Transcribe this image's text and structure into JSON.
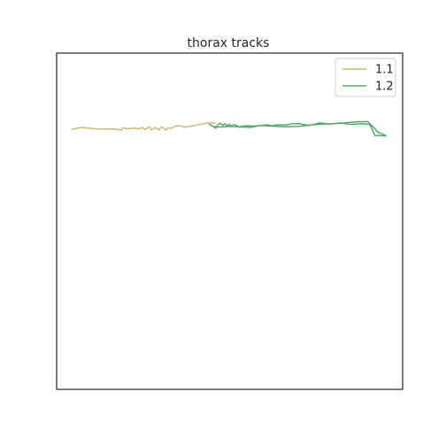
{
  "chart_data": {
    "type": "line",
    "title": "thorax tracks",
    "xlabel": "",
    "ylabel": "",
    "xlim": [
      0,
      1000
    ],
    "ylim": [
      0,
      1000
    ],
    "grid": false,
    "legend": "upper-right",
    "series": [
      {
        "name": "1.1",
        "color": "#ccb974",
        "points": [
          [
            43,
            773
          ],
          [
            72,
            779
          ],
          [
            110,
            775
          ],
          [
            143,
            774
          ],
          [
            160,
            775
          ],
          [
            188,
            771
          ],
          [
            192,
            778
          ],
          [
            206,
            775
          ],
          [
            220,
            777
          ],
          [
            240,
            775
          ],
          [
            248,
            779
          ],
          [
            256,
            773
          ],
          [
            262,
            777
          ],
          [
            268,
            781
          ],
          [
            274,
            771
          ],
          [
            280,
            776
          ],
          [
            286,
            779
          ],
          [
            290,
            774
          ],
          [
            296,
            772
          ],
          [
            300,
            778
          ],
          [
            305,
            780
          ],
          [
            310,
            776
          ],
          [
            316,
            771
          ],
          [
            322,
            778
          ],
          [
            330,
            776
          ],
          [
            340,
            781
          ],
          [
            350,
            784
          ],
          [
            360,
            783
          ],
          [
            370,
            780
          ],
          [
            385,
            782
          ],
          [
            400,
            785
          ],
          [
            420,
            789
          ],
          [
            440,
            793
          ],
          [
            460,
            791
          ]
        ]
      },
      {
        "name": "1.2",
        "color": "#55a868",
        "points": [
          [
            440,
            789
          ],
          [
            450,
            783
          ],
          [
            460,
            777
          ],
          [
            466,
            787
          ],
          [
            472,
            792
          ],
          [
            480,
            785
          ],
          [
            486,
            790
          ],
          [
            492,
            784
          ],
          [
            500,
            788
          ],
          [
            506,
            782
          ],
          [
            512,
            787
          ],
          [
            520,
            785
          ],
          [
            528,
            779
          ],
          [
            536,
            783
          ],
          [
            550,
            784
          ],
          [
            570,
            783
          ],
          [
            590,
            785
          ],
          [
            610,
            787
          ],
          [
            620,
            784
          ],
          [
            640,
            787
          ],
          [
            660,
            786
          ],
          [
            680,
            790
          ],
          [
            700,
            790
          ],
          [
            730,
            785
          ],
          [
            760,
            792
          ],
          [
            790,
            789
          ],
          [
            820,
            792
          ],
          [
            850,
            788
          ],
          [
            880,
            790
          ],
          [
            905,
            788
          ],
          [
            920,
            755
          ],
          [
            952,
            754
          ],
          [
            929,
            765
          ],
          [
            900,
            796
          ],
          [
            868,
            796
          ],
          [
            830,
            792
          ],
          [
            800,
            790
          ],
          [
            770,
            789
          ],
          [
            740,
            787
          ],
          [
            700,
            782
          ],
          [
            660,
            781
          ],
          [
            620,
            783
          ],
          [
            590,
            785
          ],
          [
            560,
            779
          ],
          [
            530,
            781
          ],
          [
            500,
            782
          ],
          [
            470,
            780
          ],
          [
            450,
            782
          ]
        ]
      }
    ]
  }
}
